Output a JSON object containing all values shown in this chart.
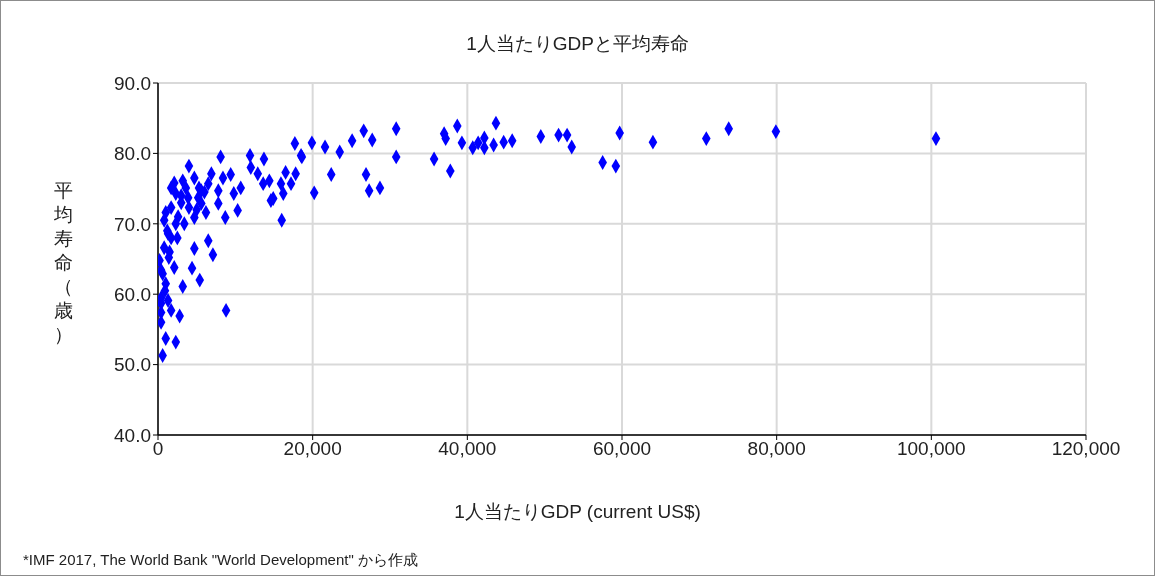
{
  "chart_data": {
    "type": "scatter",
    "title": "1人当たりGDPと平均寿命",
    "xlabel": "1人当たりGDP (current US$)",
    "ylabel": "平均寿命（歳）",
    "annotations": [
      "*IMF 2017, The World Bank \"World Development\" から作成"
    ],
    "marker": "diamond",
    "grid": true,
    "legend": false,
    "xlim": [
      0,
      120000
    ],
    "xticks": [
      0,
      {
        "value": 20000,
        "label": "20,000"
      },
      {
        "value": 40000,
        "label": "40,000"
      },
      {
        "value": 60000,
        "label": "60,000"
      },
      {
        "value": 80000,
        "label": "80,000"
      },
      {
        "value": 100000,
        "label": "100,000"
      },
      {
        "value": 120000,
        "label": "120,000"
      }
    ],
    "ylim": [
      40,
      90
    ],
    "yticks": [
      {
        "value": 40,
        "label": "40.0"
      },
      {
        "value": 50,
        "label": "50.0"
      },
      {
        "value": 60,
        "label": "60.0"
      },
      {
        "value": 70,
        "label": "70.0"
      },
      {
        "value": 80,
        "label": "80.0"
      },
      {
        "value": 90,
        "label": "90.0"
      }
    ],
    "series": [
      {
        "color": "#0000ff",
        "x": [
          100600,
          79900,
          73800,
          70900,
          64000,
          59700,
          59200,
          57500,
          53500,
          52900,
          51800,
          49500,
          19900,
          21600,
          23500,
          25100,
          26600,
          27700,
          30800,
          30800,
          35700,
          37000,
          37200,
          38700,
          37800,
          39300,
          40700,
          41400,
          42200,
          42200,
          43400,
          43700,
          44700,
          45800,
          22400,
          26900,
          27300,
          28700,
          20200,
          18500,
          8100,
          11900,
          13700,
          17700,
          18600,
          16000,
          10300,
          8800,
          6500,
          4700,
          7100,
          4400,
          5400,
          3200,
          2800,
          2300,
          600,
          1000,
          400,
          400,
          4000,
          2100,
          9400,
          10700,
          8700,
          14900,
          14400,
          15900,
          16500,
          17800,
          12000,
          12900,
          13600,
          9800,
          7800,
          6200,
          4000,
          3000,
          5300,
          6900,
          8400,
          2300,
          800,
          1300,
          800,
          1400,
          2100,
          600,
          1000,
          400,
          1300,
          400,
          1700,
          400,
          200,
          1700,
          3400,
          4700,
          5600,
          3900,
          2300,
          1700,
          3200,
          4700,
          6500,
          7800,
          1700,
          5600,
          1000,
          3600,
          5200,
          17200,
          14600,
          16200,
          1200,
          2600,
          3000,
          5000,
          6000,
          2500,
          900,
          1500
        ],
        "values": [
          82.1,
          83.1,
          83.5,
          82.1,
          81.6,
          82.9,
          78.2,
          78.7,
          80.9,
          82.6,
          82.6,
          82.4,
          81.5,
          80.9,
          80.2,
          81.8,
          83.2,
          81.9,
          83.5,
          79.5,
          79.2,
          82.8,
          82.1,
          83.9,
          77.5,
          81.5,
          80.8,
          81.5,
          82.2,
          80.8,
          81.2,
          84.3,
          81.6,
          81.8,
          77.0,
          77.0,
          74.7,
          75.1,
          74.4,
          79.7,
          79.5,
          79.7,
          79.2,
          81.4,
          79.5,
          70.5,
          71.9,
          57.7,
          67.6,
          66.5,
          65.6,
          63.7,
          62.0,
          61.1,
          56.9,
          53.2,
          51.3,
          53.7,
          57.4,
          56.0,
          78.2,
          75.8,
          77.0,
          75.1,
          70.9,
          73.6,
          76.1,
          75.7,
          77.3,
          77.1,
          78.0,
          77.1,
          75.7,
          74.3,
          72.9,
          71.6,
          72.3,
          74.0,
          75.1,
          77.1,
          76.5,
          70.0,
          70.5,
          68.6,
          66.6,
          65.2,
          63.8,
          62.9,
          61.5,
          59.5,
          59.1,
          58.7,
          57.7,
          63.4,
          64.8,
          68.0,
          70.0,
          70.9,
          72.9,
          73.7,
          74.3,
          72.3,
          76.1,
          76.5,
          75.7,
          74.7,
          75.1,
          74.7,
          71.6,
          75.1,
          73.7,
          75.7,
          73.3,
          74.3,
          69.0,
          71.0,
          73.0,
          72.0,
          74.5,
          68.0,
          60.5,
          66.0
        ]
      }
    ]
  }
}
